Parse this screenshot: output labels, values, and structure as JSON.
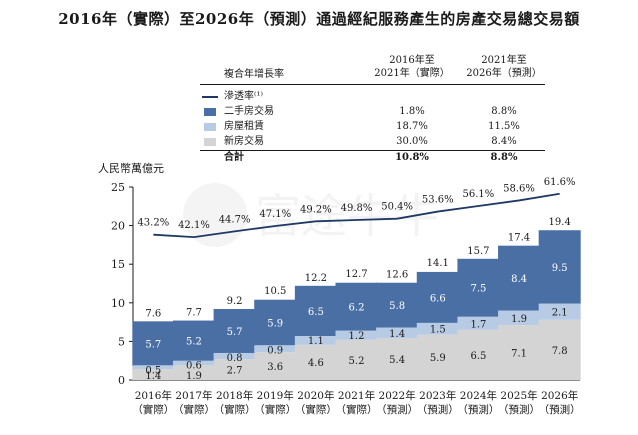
{
  "title": "2016年（實際）至2026年（預測）通過經紀服務產生的房產交易總交易額",
  "legend_table": {
    "header_label": "複合年增長率",
    "col1_line1": "2016年至",
    "col1_line2": "2021年（實際）",
    "col2_line1": "2021年至",
    "col2_line2": "2026年（預測）",
    "rows": [
      {
        "label": "滲透率⁽¹⁾",
        "c1": "",
        "c2": ""
      },
      {
        "label": "二手房交易",
        "c1": "1.8%",
        "c2": "8.8%"
      },
      {
        "label": "房屋租賃",
        "c1": "18.7%",
        "c2": "11.5%"
      },
      {
        "label": "新房交易",
        "c1": "30.0%",
        "c2": "8.4%"
      },
      {
        "label": "合計",
        "c1": "10.8%",
        "c2": "8.8%"
      }
    ]
  },
  "colors": {
    "second_hand": "#4a6fa5",
    "rental": "#b8cbe4",
    "new_home": "#d4d4d4",
    "line": "#1f3864"
  },
  "watermark": "富途牛牛",
  "chart_data": {
    "type": "bar",
    "stacked": true,
    "ylabel": "人民幣萬億元",
    "ylim": [
      0,
      25
    ],
    "yticks": [
      0,
      5,
      10,
      15,
      20,
      25
    ],
    "categories": [
      [
        "2016年",
        "（實際）"
      ],
      [
        "2017年",
        "（實際）"
      ],
      [
        "2018年",
        "（實際）"
      ],
      [
        "2019年",
        "（實際）"
      ],
      [
        "2020年",
        "（實際）"
      ],
      [
        "2021年",
        "（實際）"
      ],
      [
        "2022年",
        "（預測）"
      ],
      [
        "2023年",
        "（預測）"
      ],
      [
        "2024年",
        "（預測）"
      ],
      [
        "2025年",
        "（預測）"
      ],
      [
        "2026年",
        "（預測）"
      ]
    ],
    "series": [
      {
        "name": "新房交易",
        "values": [
          1.4,
          1.9,
          2.7,
          3.6,
          4.6,
          5.2,
          5.4,
          5.9,
          6.5,
          7.1,
          7.8
        ]
      },
      {
        "name": "房屋租賃",
        "values": [
          0.5,
          0.6,
          0.8,
          0.9,
          1.1,
          1.2,
          1.4,
          1.5,
          1.7,
          1.9,
          2.1
        ]
      },
      {
        "name": "二手房交易",
        "values": [
          5.7,
          5.2,
          5.7,
          5.9,
          6.5,
          6.2,
          5.8,
          6.6,
          7.5,
          8.4,
          9.5
        ]
      }
    ],
    "totals": [
      7.6,
      7.7,
      9.2,
      10.5,
      12.2,
      12.7,
      12.6,
      14.1,
      15.7,
      17.4,
      19.4
    ],
    "penetration": {
      "name": "滲透率⁽¹⁾",
      "values": [
        43.2,
        42.1,
        44.7,
        47.1,
        49.2,
        49.8,
        50.4,
        53.6,
        56.1,
        58.6,
        61.6
      ],
      "labels": [
        "43.2%",
        "42.1%",
        "44.7%",
        "47.1%",
        "49.2%",
        "49.8%",
        "50.4%",
        "53.6%",
        "56.1%",
        "58.6%",
        "61.6%"
      ]
    }
  }
}
